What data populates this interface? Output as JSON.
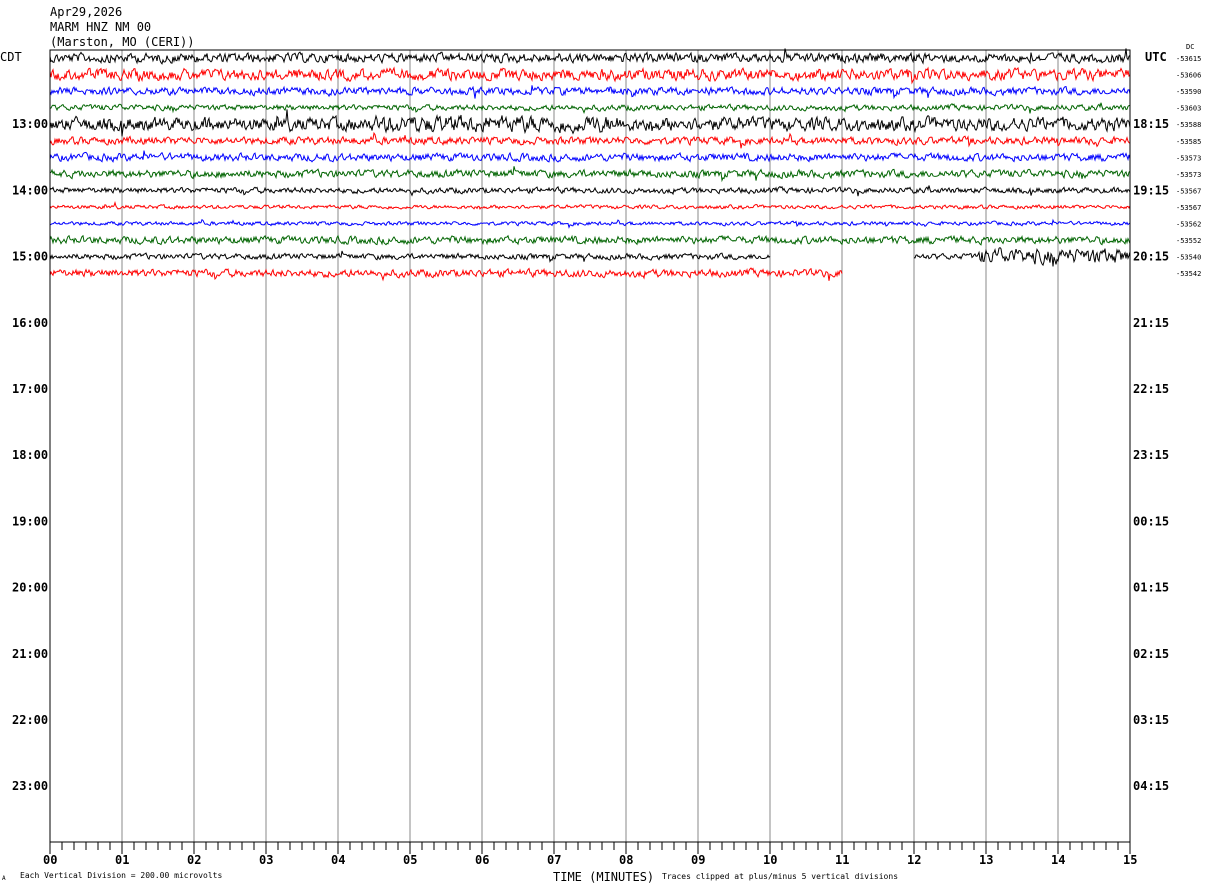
{
  "header": {
    "date": "Apr29,2026",
    "station": "MARM HNZ NM 00",
    "location": "(Marston, MO (CERI))"
  },
  "left_zone": "CDT",
  "right_zone": "UTC",
  "dc_label": "DC",
  "footer": {
    "scale": "Each Vertical Division =  200.00 microvolts",
    "xlabel": "TIME (MINUTES)",
    "clip_note": "Traces clipped at plus/minus 5 vertical divisions",
    "corner_mark": "A"
  },
  "chart_data": {
    "type": "line",
    "subtype": "helicorder",
    "xlabel": "TIME (MINUTES)",
    "xlim": [
      0,
      15
    ],
    "x_ticks": [
      "00",
      "01",
      "02",
      "03",
      "04",
      "05",
      "06",
      "07",
      "08",
      "09",
      "10",
      "11",
      "12",
      "13",
      "14",
      "15"
    ],
    "minutes_per_line": 15,
    "grid": "vertical lines each minute",
    "colors": [
      "#000000",
      "#ff0000",
      "#0000ff",
      "#006400"
    ],
    "left_labels": [
      "13:00",
      "14:00",
      "15:00",
      "16:00",
      "17:00",
      "18:00",
      "19:00",
      "20:00",
      "21:00",
      "22:00",
      "23:00"
    ],
    "right_labels": [
      "18:15",
      "19:15",
      "20:15",
      "21:15",
      "22:15",
      "23:15",
      "00:15",
      "01:15",
      "02:15",
      "03:15",
      "04:15"
    ],
    "total_lines": 48,
    "traces": [
      {
        "dc": "-53615",
        "extent": [
          [
            0,
            15
          ]
        ]
      },
      {
        "dc": "-53606",
        "extent": [
          [
            0,
            15
          ]
        ]
      },
      {
        "dc": "-53590",
        "extent": [
          [
            0,
            15
          ]
        ]
      },
      {
        "dc": "-53603",
        "extent": [
          [
            0,
            15
          ]
        ]
      },
      {
        "dc": "-53588",
        "extent": [
          [
            0,
            15
          ]
        ]
      },
      {
        "dc": "-53585",
        "extent": [
          [
            0,
            15
          ]
        ]
      },
      {
        "dc": "-53573",
        "extent": [
          [
            0,
            15
          ]
        ]
      },
      {
        "dc": "-53573",
        "extent": [
          [
            0,
            15
          ]
        ]
      },
      {
        "dc": "-53567",
        "extent": [
          [
            0,
            15
          ]
        ]
      },
      {
        "dc": "-53567",
        "extent": [
          [
            0,
            15
          ]
        ]
      },
      {
        "dc": "-53562",
        "extent": [
          [
            0,
            15
          ]
        ]
      },
      {
        "dc": "-53552",
        "extent": [
          [
            0,
            15
          ]
        ]
      },
      {
        "dc": "-53540",
        "extent": [
          [
            0,
            10
          ],
          [
            12,
            15
          ]
        ]
      },
      {
        "dc": "-53542",
        "extent": [
          [
            0,
            11
          ]
        ]
      }
    ]
  }
}
